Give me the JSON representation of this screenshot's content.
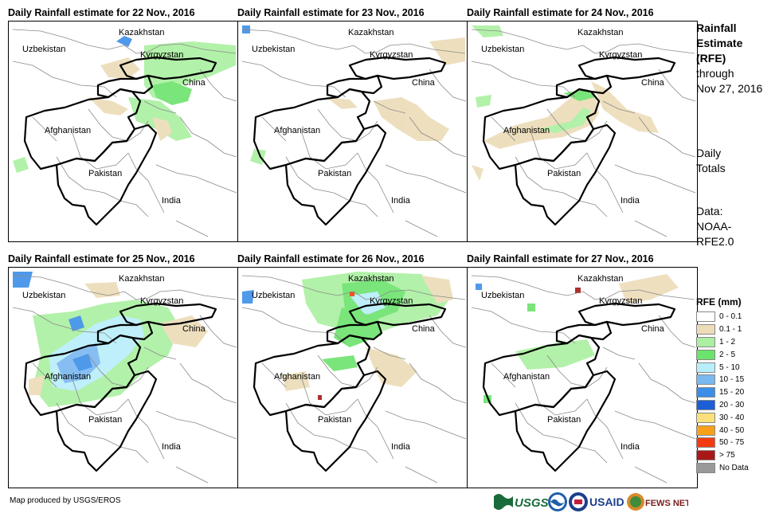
{
  "panels": [
    {
      "title": "Daily Rainfall estimate for 22 Nov., 2016"
    },
    {
      "title": "Daily Rainfall estimate for 23 Nov., 2016"
    },
    {
      "title": "Daily Rainfall estimate for 24 Nov., 2016"
    },
    {
      "title": "Daily Rainfall estimate for 25 Nov., 2016"
    },
    {
      "title": "Daily Rainfall estimate for 26 Nov., 2016"
    },
    {
      "title": "Daily Rainfall estimate for 27 Nov., 2016"
    }
  ],
  "map_labels": {
    "kazakhstan": "Kazakhstan",
    "uzbekistan": "Uzbekistan",
    "kyrgyzstan": "Kyrgyzstan",
    "china": "China",
    "afghanistan": "Afghanistan",
    "pakistan": "Pakistan",
    "india": "India"
  },
  "side_info": {
    "title_lines": [
      "Rainfall",
      "Estimate",
      "(RFE)"
    ],
    "through_lines": [
      "through",
      "Nov 27, 2016"
    ],
    "totals_lines": [
      "Daily",
      "Totals"
    ],
    "data_lines": [
      "Data:",
      "NOAA-",
      "RFE2.0"
    ]
  },
  "legend": {
    "title": "RFE (mm)",
    "items": [
      {
        "label": "0 - 0.1",
        "color": "#ffffff"
      },
      {
        "label": "0.1 - 1",
        "color": "#ecdcb8"
      },
      {
        "label": "1 - 2",
        "color": "#aaf0a0"
      },
      {
        "label": "2 - 5",
        "color": "#6ce36c"
      },
      {
        "label": "5 - 10",
        "color": "#b8eefa"
      },
      {
        "label": "10 - 15",
        "color": "#7ab8f0"
      },
      {
        "label": "15 - 20",
        "color": "#3c8ee8"
      },
      {
        "label": "20 - 30",
        "color": "#1c5ed6"
      },
      {
        "label": "30 - 40",
        "color": "#fae07a"
      },
      {
        "label": "40 - 50",
        "color": "#f7a01a"
      },
      {
        "label": "50 - 75",
        "color": "#f23c10"
      },
      {
        "label": "> 75",
        "color": "#a81818"
      },
      {
        "label": "No Data",
        "color": "#999999"
      }
    ]
  },
  "footer": {
    "credit": "Map produced by USGS/EROS"
  },
  "logos": {
    "usgs": "USGS",
    "usaid": "USAID",
    "fewsnet": "FEWS NET"
  },
  "colors": {
    "border_bold": "#000000",
    "border_thin": "#8a8a8a",
    "rain_light": "#ecdcb8",
    "rain_green": "#6ce36c",
    "rain_lightgreen": "#aaf0a0",
    "rain_cyan": "#b8eefa",
    "rain_blue": "#3c8ee8"
  }
}
